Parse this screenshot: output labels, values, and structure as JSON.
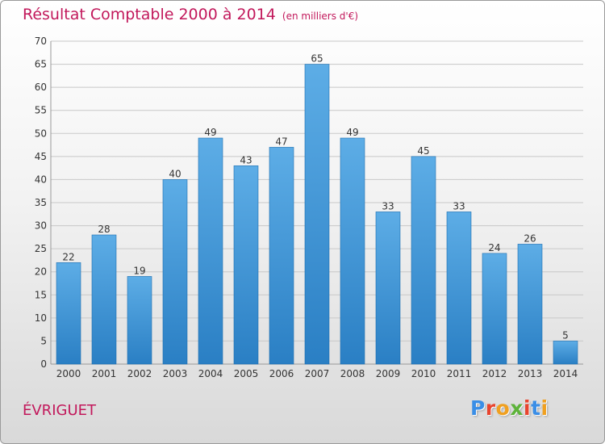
{
  "chart_data": {
    "type": "bar",
    "title": "Résultat Comptable 2000 à 2014",
    "subtitle": "(en milliers d'€)",
    "xlabel": "",
    "ylabel": "",
    "categories": [
      "2000",
      "2001",
      "2002",
      "2003",
      "2004",
      "2005",
      "2006",
      "2007",
      "2008",
      "2009",
      "2010",
      "2011",
      "2012",
      "2013",
      "2014"
    ],
    "values": [
      22,
      28,
      19,
      40,
      49,
      43,
      47,
      65,
      49,
      33,
      45,
      33,
      24,
      26,
      5
    ],
    "ylim": [
      0,
      70
    ],
    "yticks": [
      0,
      5,
      10,
      15,
      20,
      25,
      30,
      35,
      40,
      45,
      50,
      55,
      60,
      65,
      70
    ],
    "grid": true,
    "bar_color_light": "#5dade6",
    "bar_color_dark": "#2a7fc4"
  },
  "location": "ÉVRIGUET",
  "brand": {
    "letters": [
      "P",
      "r",
      "o",
      "x",
      "i",
      "t",
      "i"
    ],
    "colors": [
      "#3a8ee6",
      "#e8442e",
      "#f0a020",
      "#5db33a",
      "#e8442e",
      "#3a8ee6",
      "#f0a020"
    ]
  },
  "colors": {
    "title": "#c2185b",
    "grid": "#c8c8c8",
    "axis_text": "#333333"
  }
}
